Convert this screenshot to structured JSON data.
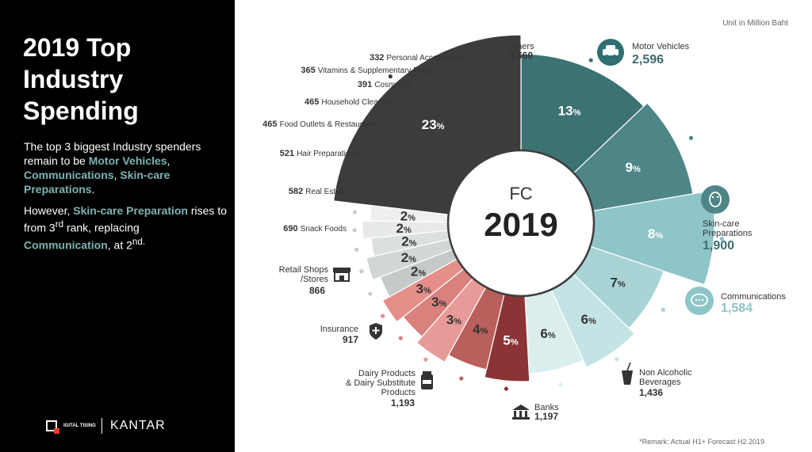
{
  "header": {
    "title": "2019 Top Industry Spending",
    "unit": "Unit in Million Baht",
    "remark": "*Remark: Actual H1+ Forecast H2 2019"
  },
  "description": {
    "p1_a": "The top 3 biggest Industry spenders remain to be ",
    "p1_hl1": "Motor Vehicles",
    "p1_b": ", ",
    "p1_hl2": "Communications",
    "p1_c": ", ",
    "p1_hl3": "Skin-care Preparations",
    "p1_d": ".",
    "p2_a": "However, ",
    "p2_hl1": "Skin-care Preparation",
    "p2_b": " rises to from 3",
    "p2_sup1": "rd",
    "p2_c": " rank, replacing ",
    "p2_hl2": "Communication",
    "p2_d": ", at 2",
    "p2_sup2": "nd."
  },
  "footer": {
    "logo_text": "IGITAL TISING",
    "brand": "KANTAR"
  },
  "colors": {
    "panel": "#000000",
    "highlight": "#7fb3b4",
    "teal_dark": "#3c7273",
    "teal_value": "#3d6d70",
    "teal_light_value": "#8ec5c8"
  },
  "chart_data": {
    "type": "pie",
    "variant": "donut",
    "center_label": "FC",
    "center_year": "2019",
    "percent_suffix": "%",
    "segments": [
      {
        "label": "Motor Vehicles",
        "value": 2596,
        "value_text": "2,596",
        "pct": "13",
        "color": "#3c7273",
        "icon": "car-icon"
      },
      {
        "label": "Skin-care Preparations",
        "value": 1900,
        "value_text": "1,900",
        "pct": "9",
        "color": "#4e8688",
        "icon": "face-mask-icon"
      },
      {
        "label": "Communications",
        "value": 1584,
        "value_text": "1,584",
        "pct": "8",
        "color": "#8ec5c8",
        "icon": "speech-bubble-icon"
      },
      {
        "label": "Non Alcoholic Beverages",
        "value": 1436,
        "value_text": "1,436",
        "pct": "7",
        "color": "#a8d4d6",
        "icon": "drink-icon"
      },
      {
        "label": "Banks",
        "value": 1197,
        "value_text": "1,197",
        "pct": "6",
        "color": "#c4e3e4",
        "icon": "bank-icon"
      },
      {
        "label": "Dairy Products & Dairy Substitute Products",
        "value": 1193,
        "value_text": "1,193",
        "pct": "6",
        "color": "#daeeee",
        "icon": "milk-icon"
      },
      {
        "label": "Insurance",
        "value": 917,
        "value_text": "917",
        "pct": "5",
        "color": "#8a3436",
        "icon": "shield-icon"
      },
      {
        "label": "Retail Shops /Stores",
        "value": 866,
        "value_text": "866",
        "pct": "4",
        "color": "#b95f5c",
        "icon": "store-icon"
      },
      {
        "label": "Snack Foods",
        "value": 690,
        "value_text": "690",
        "pct": "3",
        "color": "#e79a97",
        "icon": ""
      },
      {
        "label": "Real Estate",
        "value": 582,
        "value_text": "582",
        "pct": "3",
        "color": "#d9817d",
        "icon": ""
      },
      {
        "label": "Hair Preparations",
        "value": 521,
        "value_text": "521",
        "pct": "3",
        "color": "#e58f8b",
        "icon": ""
      },
      {
        "label": "Food Outlets & Restaurants",
        "value": 465,
        "value_text": "465",
        "pct": "2",
        "color": "#c5c9ca",
        "icon": ""
      },
      {
        "label": "Household Cleaners",
        "value": 465,
        "value_text": "465",
        "pct": "2",
        "color": "#d3d6d7",
        "icon": ""
      },
      {
        "label": "Cosmetics",
        "value": 391,
        "value_text": "391",
        "pct": "2",
        "color": "#dcdfe0",
        "icon": ""
      },
      {
        "label": "Vitamins & Supplementary Foods",
        "value": 365,
        "value_text": "365",
        "pct": "2",
        "color": "#e7e9ea",
        "icon": ""
      },
      {
        "label": "Personal Accessories",
        "value": 332,
        "value_text": "332",
        "pct": "2",
        "color": "#eeeff0",
        "icon": ""
      },
      {
        "label": "Others",
        "value": 4660,
        "value_text": "4,660",
        "pct": "23",
        "color": "#3c3c3f",
        "icon": ""
      }
    ]
  }
}
